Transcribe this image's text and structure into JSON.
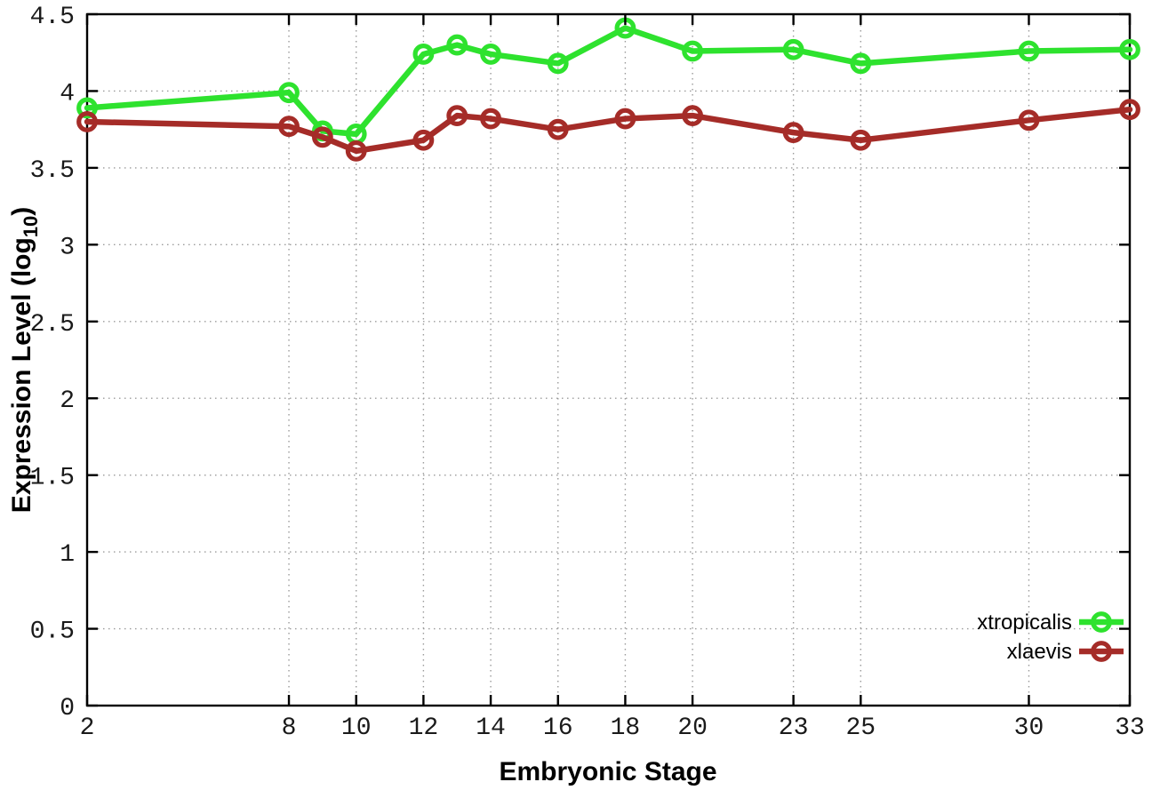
{
  "figure": {
    "background_color": "#ffffff",
    "axis_color": "#000000",
    "grid_color": "#9b9b9b"
  },
  "chart_data": {
    "type": "line",
    "title": "",
    "xlabel": "Embryonic Stage",
    "ylabel": "Expression Level (log10)",
    "ylabel_parts": {
      "prefix": "Expression Level (log",
      "sub": "10",
      "suffix": ")"
    },
    "x": [
      2,
      8,
      9,
      10,
      12,
      13,
      14,
      16,
      18,
      20,
      23,
      25,
      30,
      33
    ],
    "series": [
      {
        "name": "xtropicalis",
        "color": "#2ee22e",
        "marker": "open-circle",
        "values": [
          3.89,
          3.99,
          3.74,
          3.72,
          4.24,
          4.3,
          4.24,
          4.18,
          4.41,
          4.26,
          4.27,
          4.18,
          4.26,
          4.27
        ]
      },
      {
        "name": "xlaevis",
        "color": "#a52c28",
        "marker": "open-circle",
        "values": [
          3.8,
          3.77,
          3.7,
          3.61,
          3.68,
          3.84,
          3.82,
          3.75,
          3.82,
          3.84,
          3.73,
          3.68,
          3.81,
          3.88
        ]
      }
    ],
    "xtick_labels": [
      "2",
      "8",
      "10",
      "12",
      "14",
      "16",
      "18",
      "20",
      "23",
      "25",
      "30",
      "33"
    ],
    "ytick_labels": [
      "0",
      "0.5",
      "1",
      "1.5",
      "2",
      "2.5",
      "3",
      "3.5",
      "4",
      "4.5"
    ],
    "xlim": [
      2,
      33
    ],
    "ylim": [
      0,
      4.5
    ],
    "grid": true,
    "grid_style": "dotted",
    "legend_position": "bottom-right-inside",
    "legend_entries": [
      "xtropicalis",
      "xlaevis"
    ]
  }
}
